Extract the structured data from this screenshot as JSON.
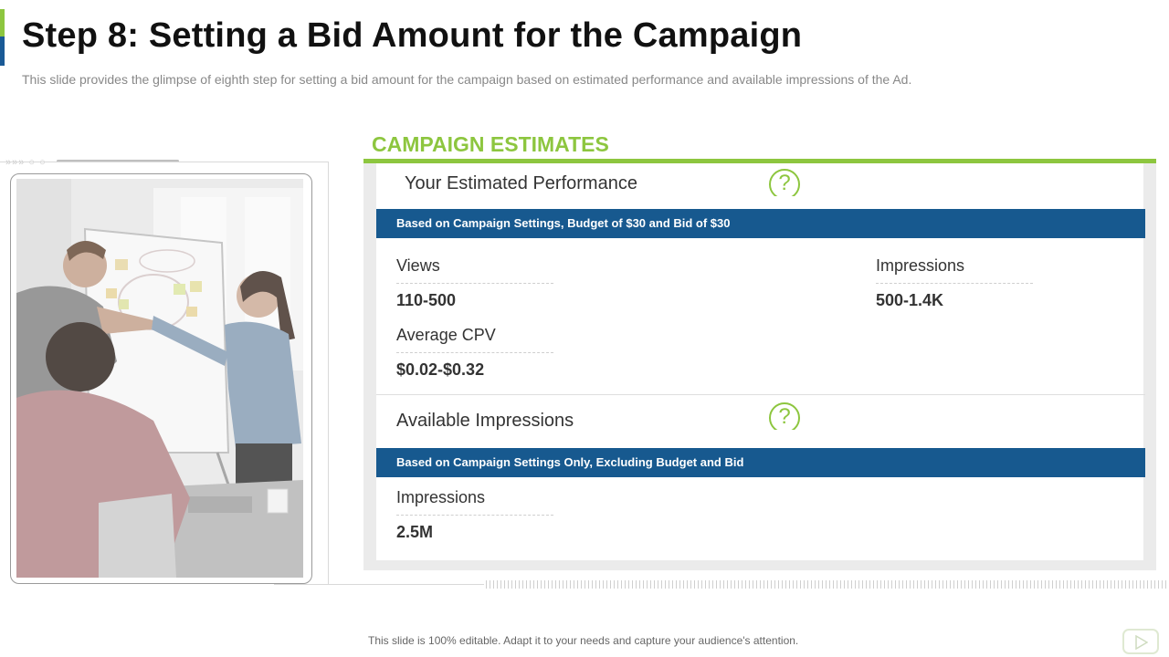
{
  "slide": {
    "title": "Step 8: Setting a Bid Amount for the Campaign",
    "subtitle": "This slide provides the glimpse of eighth step for setting a bid amount for the campaign based on estimated performance and available impressions of the Ad.",
    "footer": "This slide is 100% editable. Adapt it to your needs and capture your audience's attention."
  },
  "browser": {
    "dots": "»»» ○ ○"
  },
  "photo": {
    "icon": "office-meeting-whiteboard-photo"
  },
  "estimates": {
    "title": "CAMPAIGN ESTIMATES",
    "performance": {
      "heading": "Your Estimated Performance",
      "help_symbol": "?",
      "band": "Based on Campaign Settings, Budget of $30 and Bid of $30",
      "metrics": [
        {
          "label": "Views",
          "value": "110-500"
        },
        {
          "label": "Impressions",
          "value": "500-1.4K"
        },
        {
          "label": "Average CPV",
          "value": "$0.02-$0.32"
        }
      ]
    },
    "available": {
      "heading": "Available Impressions",
      "help_symbol": "?",
      "band": "Based on Campaign Settings Only, Excluding Budget and Bid",
      "metrics": [
        {
          "label": "Impressions",
          "value": "2.5M"
        }
      ]
    }
  },
  "colors": {
    "accent_green": "#8dc63f",
    "accent_blue": "#17598f"
  }
}
